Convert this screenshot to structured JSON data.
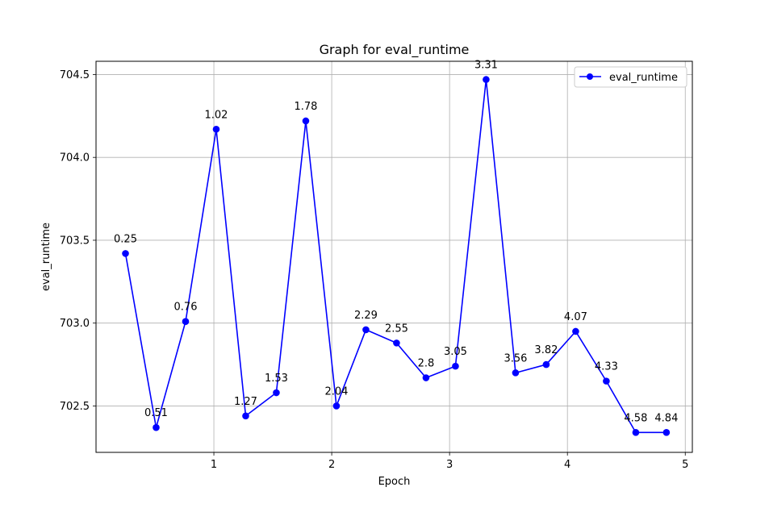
{
  "chart_data": {
    "type": "line",
    "title": "Graph for eval_runtime",
    "xlabel": "Epoch",
    "ylabel": "eval_runtime",
    "xlim": [
      0.0,
      5.06
    ],
    "ylim": [
      702.22,
      704.58
    ],
    "xticks": [
      1,
      2,
      3,
      4,
      5
    ],
    "xtick_labels": [
      "1",
      "2",
      "3",
      "4",
      "5"
    ],
    "yticks": [
      702.5,
      703.0,
      703.5,
      704.0,
      704.5
    ],
    "ytick_labels": [
      "702.5",
      "703.0",
      "703.5",
      "704.0",
      "704.5"
    ],
    "grid": true,
    "legend_position": "top-right",
    "color": "#0000ff",
    "series": [
      {
        "name": "eval_runtime",
        "x": [
          0.25,
          0.51,
          0.76,
          1.02,
          1.27,
          1.53,
          1.78,
          2.04,
          2.29,
          2.55,
          2.8,
          3.05,
          3.31,
          3.56,
          3.82,
          4.07,
          4.33,
          4.58,
          4.84
        ],
        "y": [
          703.42,
          702.37,
          703.01,
          704.17,
          702.44,
          702.58,
          704.22,
          702.5,
          702.96,
          702.88,
          702.67,
          702.74,
          704.47,
          702.7,
          702.75,
          702.95,
          702.65,
          702.34,
          702.34
        ],
        "point_labels": [
          "0.25",
          "0.51",
          "0.76",
          "1.02",
          "1.27",
          "1.53",
          "1.78",
          "2.04",
          "2.29",
          "2.55",
          "2.8",
          "3.05",
          "3.31",
          "3.56",
          "3.82",
          "4.07",
          "4.33",
          "4.58",
          "4.84"
        ]
      }
    ]
  }
}
